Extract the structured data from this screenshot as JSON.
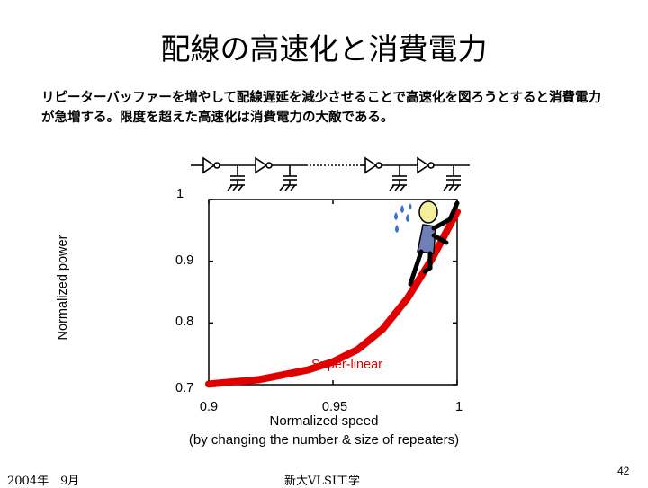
{
  "slide": {
    "title": "配線の高速化と消費電力",
    "description_line1": "リピーターバッファーを増やして配線遅延を減少させることで高速化を図ろうとすると消費電力",
    "description_line2": "が急増する。限度を超えた高速化は消費電力の大敵である。",
    "footer_date": "2004年　9月",
    "footer_org": "新大VLSI工学",
    "page_number": "42"
  },
  "chart_data": {
    "type": "line",
    "xlabel": "Normalized speed",
    "xlabel_sub": "(by changing the number & size of repeaters)",
    "ylabel": "Normalized power",
    "xlim": [
      0.9,
      1.0
    ],
    "ylim": [
      0.7,
      1.0
    ],
    "x_ticks": [
      "0.9",
      "0.95",
      "1"
    ],
    "y_ticks": [
      "0.7",
      "0.8",
      "0.9",
      "1"
    ],
    "annotation": "Super-linear",
    "series_color": "#e00000",
    "series": [
      {
        "x": [
          0.9,
          0.92,
          0.94,
          0.95,
          0.96,
          0.97,
          0.98,
          0.99,
          1.0
        ],
        "y": [
          0.701,
          0.708,
          0.724,
          0.737,
          0.757,
          0.79,
          0.84,
          0.905,
          0.98
        ]
      }
    ]
  },
  "illustration": {
    "repeater_chain": "repeater-buffer-chain",
    "figure": "sweating-person-climbing-curve"
  }
}
